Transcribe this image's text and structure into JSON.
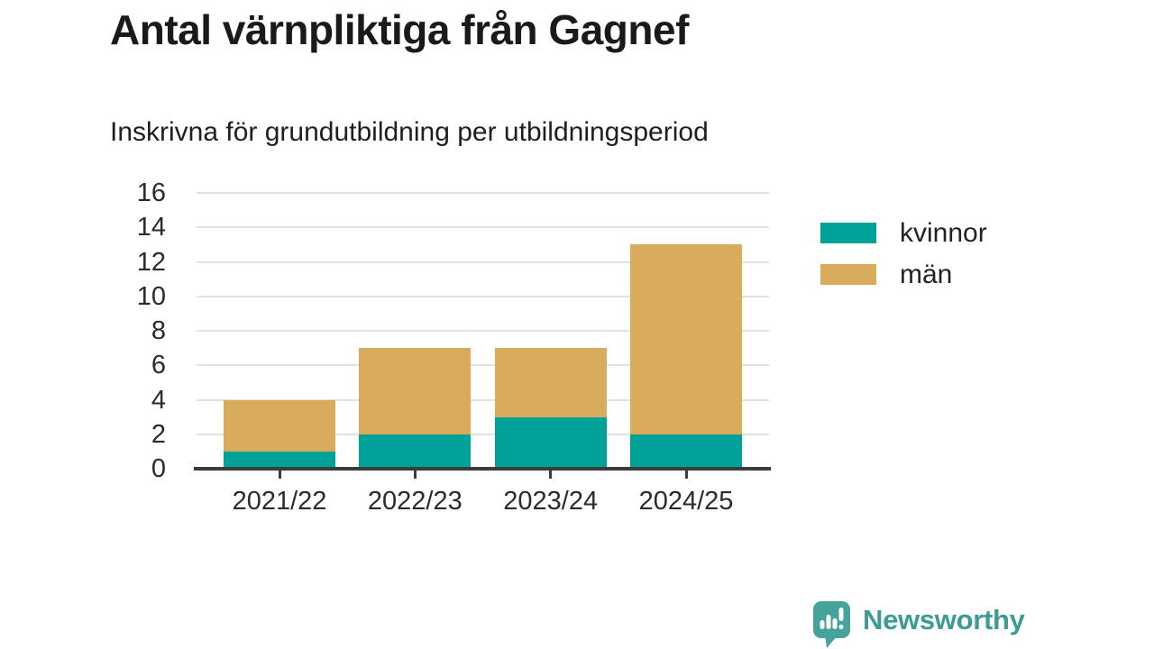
{
  "header": {
    "title": "Antal värnpliktiga från Gagnef",
    "subtitle": "Inskrivna för grundutbildning per utbildningsperiod"
  },
  "chart_data": {
    "type": "bar",
    "stacked": true,
    "title": "Antal värnpliktiga från Gagnef",
    "subtitle": "Inskrivna för grundutbildning per utbildningsperiod",
    "categories": [
      "2021/22",
      "2022/23",
      "2023/24",
      "2024/25"
    ],
    "series": [
      {
        "name": "kvinnor",
        "color": "#00a298",
        "values": [
          1,
          2,
          3,
          2
        ]
      },
      {
        "name": "män",
        "color": "#d8ac5b",
        "values": [
          3,
          5,
          4,
          11
        ]
      }
    ],
    "totals": [
      4,
      7,
      7,
      13
    ],
    "xlabel": "",
    "ylabel": "",
    "ylim": [
      0,
      16
    ],
    "yticks": [
      0,
      2,
      4,
      6,
      8,
      10,
      12,
      14,
      16
    ],
    "grid": true,
    "legend_position": "right"
  },
  "footer": {
    "brand": "Newsworthy",
    "brand_color": "#3d9b93",
    "icon_color": "#46a39b"
  },
  "colors": {
    "grid": "#e2e2e2",
    "axis": "#3b3b3b",
    "text": "#1a1a1a"
  }
}
